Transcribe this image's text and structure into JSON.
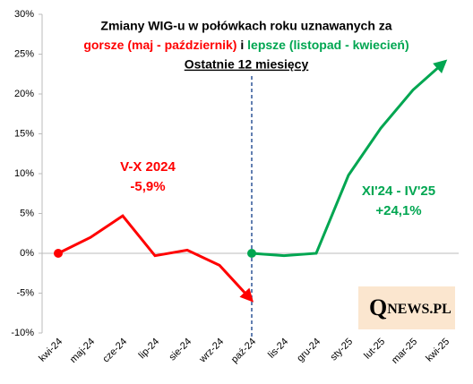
{
  "chart_data": {
    "type": "line",
    "title": "Zmiany WIG-u w połówkach  roku uznawanych za",
    "subtitle_parts": [
      {
        "text": "gorsze (maj - październik)",
        "color": "#ff0000"
      },
      {
        "text": " i ",
        "color": "#000000"
      },
      {
        "text": "lepsze (listopad - kwiecień)",
        "color": "#00a651"
      }
    ],
    "subtitle2": "Ostatnie 12 miesięcy",
    "categories": [
      "kwi-24",
      "maj-24",
      "cze-24",
      "lip-24",
      "sie-24",
      "wrz-24",
      "paź-24",
      "lis-24",
      "gru-24",
      "sty-25",
      "lut-25",
      "mar-25",
      "kwi-25"
    ],
    "series": [
      {
        "color": "#ff0000",
        "values": [
          0,
          2.0,
          4.7,
          -0.3,
          0.4,
          -1.5,
          -5.9,
          null,
          null,
          null,
          null,
          null,
          null
        ]
      },
      {
        "color": "#00a651",
        "values": [
          null,
          null,
          null,
          null,
          null,
          null,
          0,
          -0.3,
          0,
          9.8,
          15.7,
          20.5,
          24.1
        ]
      }
    ],
    "annotations": [
      {
        "lines": [
          "V-X 2024",
          "-5,9%"
        ],
        "color": "#ff0000"
      },
      {
        "lines": [
          "XI'24 - IV'25",
          "+24,1%"
        ],
        "color": "#00a651"
      }
    ],
    "logo": {
      "q": "Q",
      "rest": "NEWS.PL"
    },
    "ylim": [
      -10,
      30
    ],
    "yticks": [
      {
        "value": -10,
        "label": "-10%"
      },
      {
        "value": -5,
        "label": "-5%"
      },
      {
        "value": 0,
        "label": "0%"
      },
      {
        "value": 5,
        "label": "5%"
      },
      {
        "value": 10,
        "label": "10%"
      },
      {
        "value": 15,
        "label": "15%"
      },
      {
        "value": 20,
        "label": "20%"
      },
      {
        "value": 25,
        "label": "25%"
      },
      {
        "value": 30,
        "label": "30%"
      }
    ]
  }
}
